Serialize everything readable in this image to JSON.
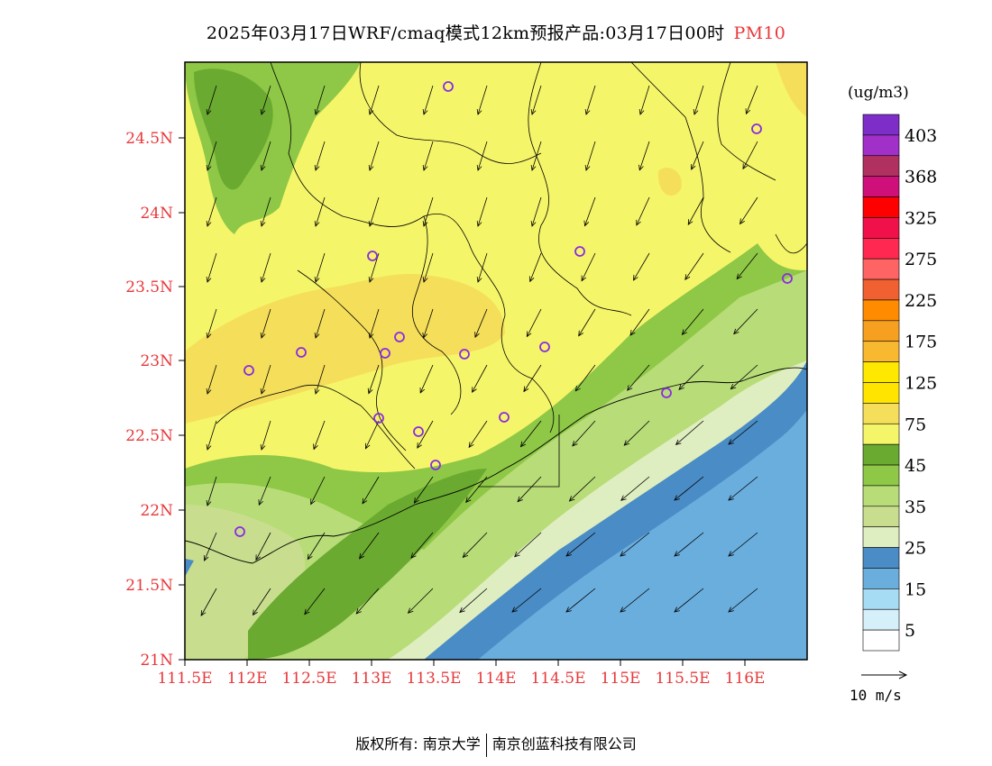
{
  "title": {
    "main": "2025年03月17日WRF/cmaq模式12km预报产品:03月17日00时",
    "pollutant": "PM10"
  },
  "map": {
    "lat_ticks": [
      "24.5N",
      "24N",
      "23.5N",
      "23N",
      "22.5N",
      "22N",
      "21.5N",
      "21N"
    ],
    "lon_ticks": [
      "111.5E",
      "112E",
      "112.5E",
      "113E",
      "113.5E",
      "114E",
      "114.5E",
      "115E",
      "115.5E",
      "116E"
    ],
    "tick_color": "#e8383a"
  },
  "legend": {
    "unit": "(ug/m3)",
    "labels": [
      "403",
      "368",
      "325",
      "275",
      "225",
      "175",
      "125",
      "75",
      "45",
      "35",
      "25",
      "15",
      "5"
    ],
    "colors": [
      "#7d2ec8",
      "#a030c8",
      "#b03060",
      "#d0107a",
      "#ff0000",
      "#f0104a",
      "#ff2850",
      "#ff6464",
      "#f06030",
      "#ff8c00",
      "#f7a020",
      "#f8b830",
      "#ffe800",
      "#ffe400",
      "#f5de5a",
      "#f5f56a",
      "#6aaa30",
      "#8ec846",
      "#b8dc78",
      "#c8de8e",
      "#dfeec0",
      "#4a8cc6",
      "#6aaede",
      "#a6dcf4",
      "#d6f0fa",
      "#ffffff"
    ]
  },
  "wind_scale": {
    "label": "10 m/s"
  },
  "footer": {
    "owner1": "版权所有: 南京大学",
    "owner2": "南京创蓝科技有限公司"
  }
}
